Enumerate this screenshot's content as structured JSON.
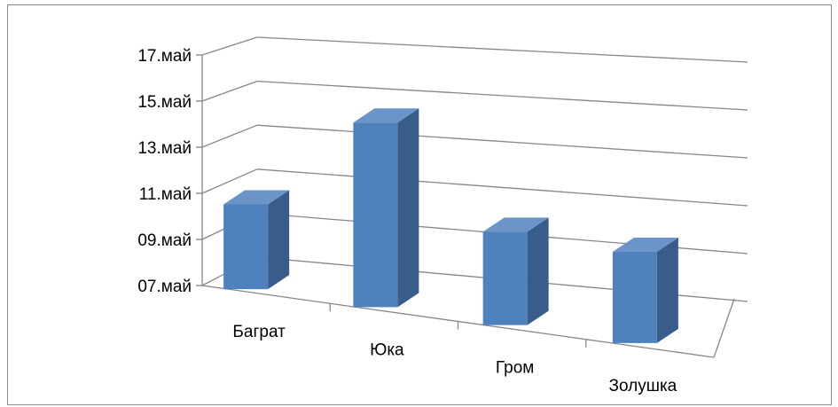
{
  "chart_data": {
    "type": "bar",
    "style": "3d-column",
    "categories": [
      "Баграт",
      "Юка",
      "Гром",
      "Золушка"
    ],
    "values": [
      11.0,
      15.7,
      11.4,
      11.3
    ],
    "y_tick_labels": [
      "07.май",
      "09.май",
      "11.май",
      "13.май",
      "15.май",
      "17.май"
    ],
    "y_tick_values": [
      7,
      9,
      11,
      13,
      15,
      17
    ],
    "ylim": [
      7,
      17
    ],
    "grid": true,
    "legend": "none",
    "title": "",
    "xlabel": "",
    "ylabel": "",
    "colors": {
      "front": "#4f81bd",
      "side": "#385d8a",
      "top": "#6b94c8",
      "grid": "#868686"
    }
  }
}
